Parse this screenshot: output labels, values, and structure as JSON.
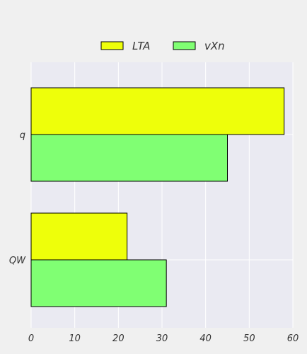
{
  "chart_data": {
    "type": "bar",
    "orientation": "horizontal",
    "categories": [
      "q",
      "QW"
    ],
    "series": [
      {
        "name": "LTA",
        "values": [
          58,
          22
        ],
        "color": "#eeff0a"
      },
      {
        "name": "vXn",
        "values": [
          45,
          31
        ],
        "color": "#80ff73"
      }
    ],
    "xlim": [
      0,
      60
    ],
    "x_ticks": [
      0,
      10,
      20,
      30,
      40,
      50,
      60
    ],
    "grid": true,
    "legend_position": "top-center",
    "plot_background": "#eaeaf2",
    "page_background": "#f0f0f0"
  }
}
